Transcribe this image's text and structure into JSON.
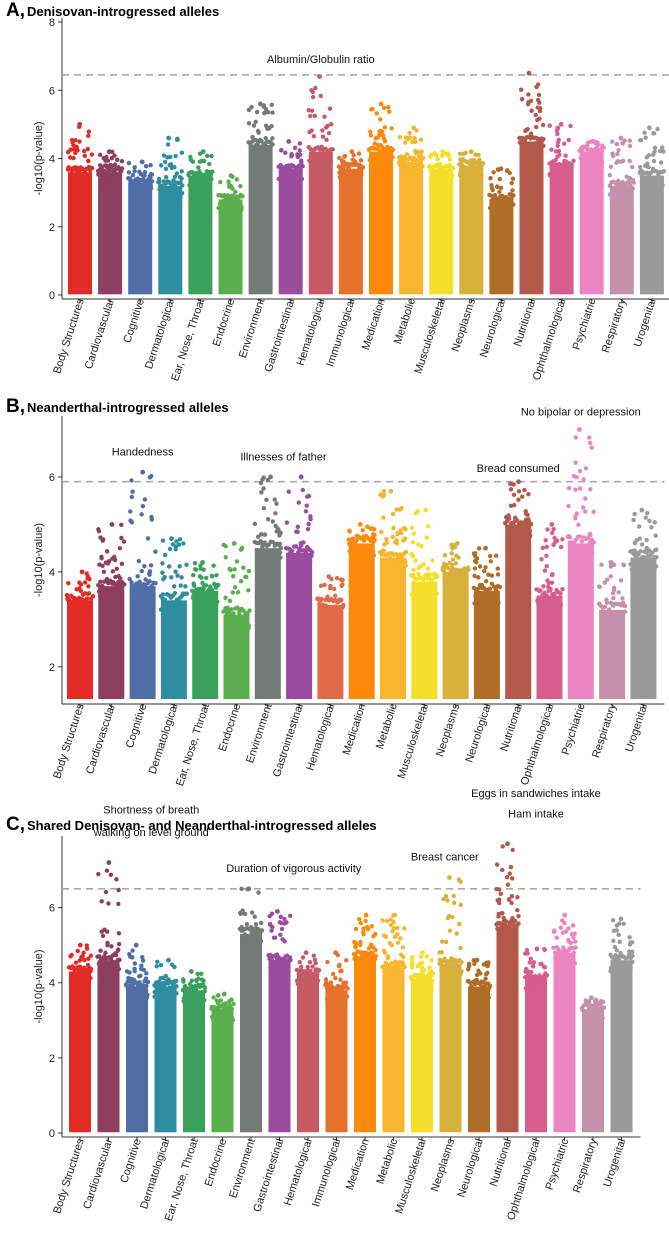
{
  "chart_data": [
    {
      "type": "scatter",
      "panel_letter": "A,",
      "title": "Denisovan-introgressed alleles",
      "ylabel": "-log10(p-value)",
      "xlabel": "",
      "ylim": [
        0,
        8
      ],
      "yticks": [
        0,
        2,
        4,
        6,
        8
      ],
      "threshold": 6.45,
      "categories": [
        "Body Structures",
        "Cardiovascular",
        "Cognitive",
        "Dermatological",
        "Ear, Nose, Throat",
        "Endocrine",
        "Environment",
        "Gastrointestinal",
        "Hematological",
        "Immunological",
        "Medication",
        "Metabolic",
        "Musculoskeletal",
        "Neoplasms",
        "Neurological",
        "Nutritional",
        "Ophthalmological",
        "Psychiatric",
        "Respiratory",
        "Urogenital"
      ],
      "colors": [
        "#e32b26",
        "#8e3f5d",
        "#4f6ea6",
        "#2e8e9f",
        "#3aa15d",
        "#5aaf4d",
        "#737a78",
        "#9a4c9e",
        "#c65b67",
        "#e6712b",
        "#fb8a0a",
        "#f6b62d",
        "#f4e029",
        "#d8b13b",
        "#b06d27",
        "#b4584a",
        "#d75d8e",
        "#eb84c1",
        "#c490aa",
        "#9a9a9a"
      ],
      "series": [
        {
          "name": "Body Structures",
          "max": 5.0,
          "dense_top": 3.6
        },
        {
          "name": "Cardiovascular",
          "max": 4.2,
          "dense_top": 3.6
        },
        {
          "name": "Cognitive",
          "max": 3.9,
          "dense_top": 3.3
        },
        {
          "name": "Dermatological",
          "max": 4.6,
          "dense_top": 3.2
        },
        {
          "name": "Ear, Nose, Throat",
          "max": 4.2,
          "dense_top": 3.5
        },
        {
          "name": "Endocrine",
          "max": 3.5,
          "dense_top": 2.8
        },
        {
          "name": "Environment",
          "max": 5.6,
          "dense_top": 4.4
        },
        {
          "name": "Gastrointestinal",
          "max": 4.5,
          "dense_top": 3.7
        },
        {
          "name": "Hematological",
          "max": 6.4,
          "dense_top": 4.2
        },
        {
          "name": "Immunological",
          "max": 4.2,
          "dense_top": 3.7
        },
        {
          "name": "Medication",
          "max": 5.6,
          "dense_top": 4.2
        },
        {
          "name": "Metabolic",
          "max": 4.9,
          "dense_top": 3.9
        },
        {
          "name": "Musculoskeletal",
          "max": 4.2,
          "dense_top": 3.7
        },
        {
          "name": "Neoplasms",
          "max": 4.2,
          "dense_top": 3.8
        },
        {
          "name": "Neurological",
          "max": 3.7,
          "dense_top": 2.8
        },
        {
          "name": "Nutritional",
          "max": 6.5,
          "dense_top": 4.5
        },
        {
          "name": "Ophthalmological",
          "max": 5.0,
          "dense_top": 3.8
        },
        {
          "name": "Psychiatric",
          "max": 4.5,
          "dense_top": 4.2
        },
        {
          "name": "Respiratory",
          "max": 4.6,
          "dense_top": 3.2
        },
        {
          "name": "Urogenital",
          "max": 4.9,
          "dense_top": 3.5
        }
      ],
      "annotations": [
        {
          "text": "Albumin/Globulin ratio",
          "x": 8,
          "y": 6.8
        }
      ]
    },
    {
      "type": "scatter",
      "panel_letter": "B,",
      "title": "Neanderthal-introgressed alleles",
      "ylabel": "-log10(p-value)",
      "xlabel": "",
      "ylim": [
        1.3,
        7.2
      ],
      "yticks": [
        2,
        4,
        6
      ],
      "threshold": 5.9,
      "categories": [
        "Body Structures",
        "Cardiovascular",
        "Cognitive",
        "Dermatological",
        "Ear, Nose, Throat",
        "Endocrine",
        "Environment",
        "Gastrointestinal",
        "Hematological",
        "Medication",
        "Metabolic",
        "Musculoskeletal",
        "Neoplasms",
        "Neurological",
        "Nutritional",
        "Ophthalmological",
        "Psychiatric",
        "Respiratory",
        "Urogenital"
      ],
      "colors": [
        "#e32b26",
        "#8e3f5d",
        "#4f6ea6",
        "#2e8e9f",
        "#3aa15d",
        "#5aaf4d",
        "#737a78",
        "#9a4c9e",
        "#e06a4a",
        "#fb8a0a",
        "#f6b62d",
        "#f4e029",
        "#d8b13b",
        "#b06d27",
        "#b4584a",
        "#d75d8e",
        "#eb84c1",
        "#c490aa",
        "#9a9a9a"
      ],
      "series": [
        {
          "name": "Body Structures",
          "max": 4.0,
          "dense_top": 3.4
        },
        {
          "name": "Cardiovascular",
          "max": 5.0,
          "dense_top": 3.7
        },
        {
          "name": "Cognitive",
          "max": 6.1,
          "dense_top": 3.7
        },
        {
          "name": "Dermatological",
          "max": 4.7,
          "dense_top": 3.4
        },
        {
          "name": "Ear, Nose, Throat",
          "max": 4.2,
          "dense_top": 3.6
        },
        {
          "name": "Endocrine",
          "max": 4.6,
          "dense_top": 3.1
        },
        {
          "name": "Environment",
          "max": 6.0,
          "dense_top": 4.5
        },
        {
          "name": "Gastrointestinal",
          "max": 6.0,
          "dense_top": 4.4
        },
        {
          "name": "Hematological",
          "max": 3.9,
          "dense_top": 3.3
        },
        {
          "name": "Medication",
          "max": 5.0,
          "dense_top": 4.6
        },
        {
          "name": "Metabolic",
          "max": 5.7,
          "dense_top": 4.3
        },
        {
          "name": "Musculoskeletal",
          "max": 5.3,
          "dense_top": 3.8
        },
        {
          "name": "Neoplasms",
          "max": 4.6,
          "dense_top": 4.0
        },
        {
          "name": "Neurological",
          "max": 4.5,
          "dense_top": 3.6
        },
        {
          "name": "Nutritional",
          "max": 5.9,
          "dense_top": 5.0
        },
        {
          "name": "Ophthalmological",
          "max": 5.0,
          "dense_top": 3.5
        },
        {
          "name": "Psychiatric",
          "max": 7.0,
          "dense_top": 4.6
        },
        {
          "name": "Respiratory",
          "max": 4.2,
          "dense_top": 3.2
        },
        {
          "name": "Urogenital",
          "max": 5.3,
          "dense_top": 4.3
        }
      ],
      "annotations": [
        {
          "text": "Handedness",
          "x": 2,
          "y": 6.45
        },
        {
          "text": "Illnesses of father",
          "x": 6.5,
          "y": 6.35
        },
        {
          "text": "Bread consumed",
          "x": 14,
          "y": 6.1
        },
        {
          "text": "No bipolar or depression",
          "x": 16,
          "y": 7.3
        }
      ]
    },
    {
      "type": "scatter",
      "panel_letter": "C,",
      "title": "Shared Denisovan- and Neanderthal-introgressed alleles",
      "ylabel": "-log10(p-value)",
      "xlabel": "",
      "ylim": [
        0,
        7.8
      ],
      "yticks": [
        0,
        2,
        4,
        6
      ],
      "threshold": 6.5,
      "categories": [
        "Body Structures",
        "Cardiovascular",
        "Cognitive",
        "Dermatological",
        "Ear, Nose, Throat",
        "Endocrine",
        "Environment",
        "Gastrointestinal",
        "Hematological",
        "Immunological",
        "Medication",
        "Metabolic",
        "Musculoskeletal",
        "Neoplasms",
        "Neurological",
        "Nutritional",
        "Ophthalmological",
        "Psychiatric",
        "Respiratory",
        "Urogenital"
      ],
      "colors": [
        "#e32b26",
        "#8e3f5d",
        "#4f6ea6",
        "#2e8e9f",
        "#3aa15d",
        "#5aaf4d",
        "#737a78",
        "#9a4c9e",
        "#c65b67",
        "#e6712b",
        "#fb8a0a",
        "#f6b62d",
        "#f4e029",
        "#d8b13b",
        "#b06d27",
        "#b4584a",
        "#d75d8e",
        "#eb84c1",
        "#c490aa",
        "#9a9a9a"
      ],
      "series": [
        {
          "name": "Body Structures",
          "max": 5.0,
          "dense_top": 4.3
        },
        {
          "name": "Cardiovascular",
          "max": 7.2,
          "dense_top": 4.6
        },
        {
          "name": "Cognitive",
          "max": 5.0,
          "dense_top": 3.9
        },
        {
          "name": "Dermatological",
          "max": 4.6,
          "dense_top": 3.9
        },
        {
          "name": "Ear, Nose, Throat",
          "max": 4.3,
          "dense_top": 3.8
        },
        {
          "name": "Endocrine",
          "max": 3.7,
          "dense_top": 3.3
        },
        {
          "name": "Environment",
          "max": 6.5,
          "dense_top": 5.3
        },
        {
          "name": "Gastrointestinal",
          "max": 5.9,
          "dense_top": 4.6
        },
        {
          "name": "Hematological",
          "max": 4.8,
          "dense_top": 4.2
        },
        {
          "name": "Immunological",
          "max": 4.8,
          "dense_top": 3.8
        },
        {
          "name": "Medication",
          "max": 5.8,
          "dense_top": 4.7
        },
        {
          "name": "Metabolic",
          "max": 5.8,
          "dense_top": 4.4
        },
        {
          "name": "Musculoskeletal",
          "max": 4.8,
          "dense_top": 4.1
        },
        {
          "name": "Neoplasms",
          "max": 6.8,
          "dense_top": 4.5
        },
        {
          "name": "Neurological",
          "max": 4.6,
          "dense_top": 3.9
        },
        {
          "name": "Nutritional",
          "max": 7.7,
          "dense_top": 5.5
        },
        {
          "name": "Ophthalmological",
          "max": 4.9,
          "dense_top": 4.1
        },
        {
          "name": "Psychiatric",
          "max": 5.8,
          "dense_top": 4.8
        },
        {
          "name": "Respiratory",
          "max": 3.6,
          "dense_top": 3.3
        },
        {
          "name": "Urogenital",
          "max": 5.7,
          "dense_top": 4.6
        }
      ],
      "annotations": [
        {
          "text": "Shortness of breath",
          "x": 2.5,
          "y": 8.5
        },
        {
          "text": "walking on level ground",
          "x": 2.5,
          "y": 7.9
        },
        {
          "text": "Duration of vigorous activity",
          "x": 7.5,
          "y": 6.95
        },
        {
          "text": "Breast cancer",
          "x": 12.8,
          "y": 7.25
        },
        {
          "text": "Eggs in sandwiches intake",
          "x": 16,
          "y": 8.95
        },
        {
          "text": "Ham intake",
          "x": 16,
          "y": 8.4
        }
      ]
    }
  ]
}
